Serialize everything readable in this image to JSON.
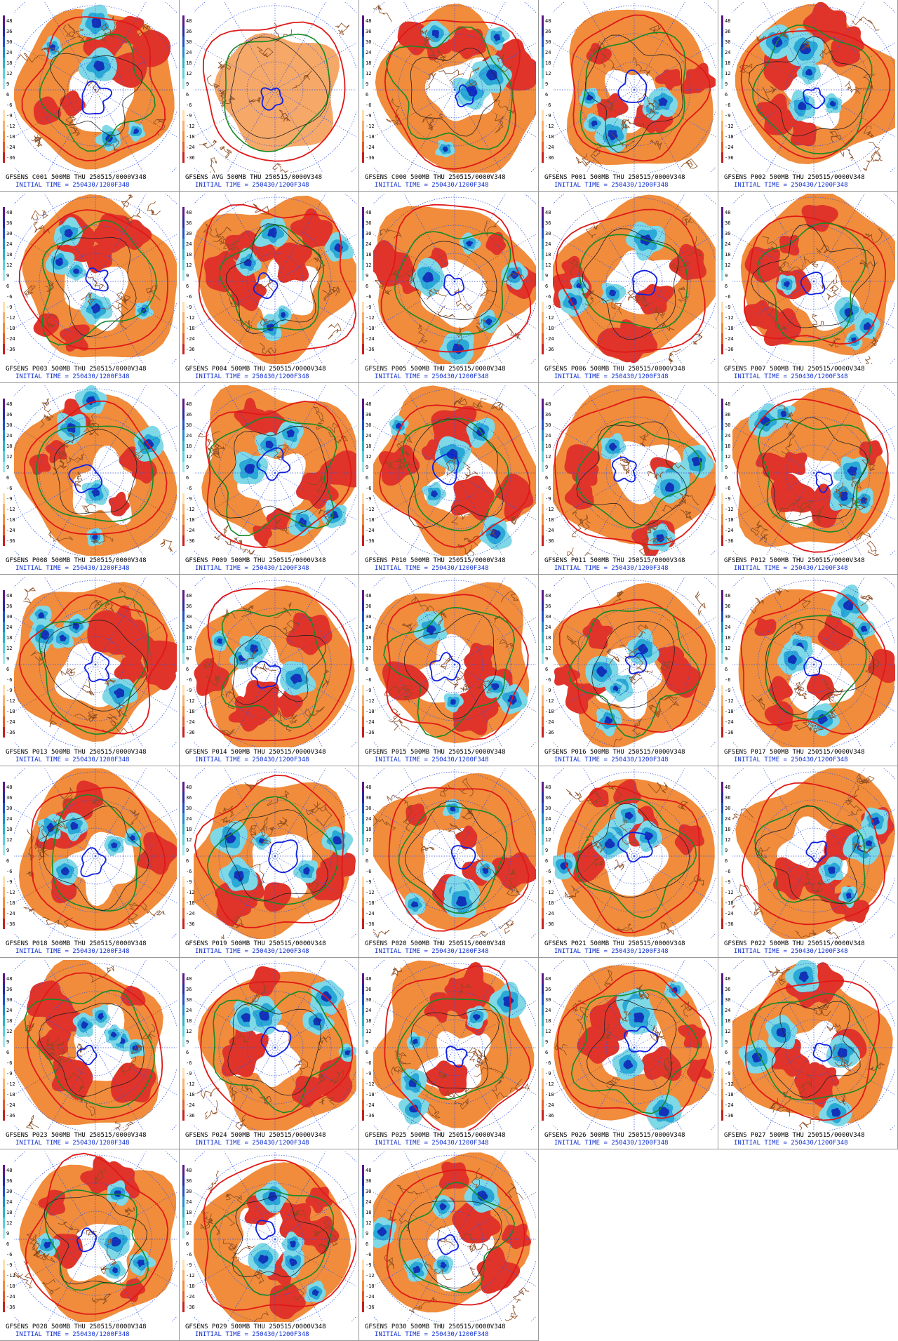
{
  "panels": [
    {
      "title": "GFSENS C001 500MB THU 250515/0000V348"
    },
    {
      "title": "GFSENS AVG 500MB THU 250515/0000V348"
    },
    {
      "title": "GFSENS C000 500MB THU 250515/0000V348"
    },
    {
      "title": "GFSENS P001 500MB THU 250515/0000V348"
    },
    {
      "title": "GFSENS P002 500MB THU 250515/0000V348"
    },
    {
      "title": "GFSENS P003 500MB THU 250515/0000V348"
    },
    {
      "title": "GFSENS P004 500MB THU 250515/0000V348"
    },
    {
      "title": "GFSENS P005 500MB THU 250515/0000V348"
    },
    {
      "title": "GFSENS P006 500MB THU 250515/0000V348"
    },
    {
      "title": "GFSENS P007 500MB THU 250515/0000V348"
    },
    {
      "title": "GFSENS P008 500MB THU 250515/0000V348"
    },
    {
      "title": "GFSENS P009 500MB THU 250515/0000V348"
    },
    {
      "title": "GFSENS P010 500MB THU 250515/0000V348"
    },
    {
      "title": "GFSENS P011 500MB THU 250515/0000V348"
    },
    {
      "title": "GFSENS P012 500MB THU 250515/0000V348"
    },
    {
      "title": "GFSENS P013 500MB THU 250515/0000V348"
    },
    {
      "title": "GFSENS P014 500MB THU 250515/0000V348"
    },
    {
      "title": "GFSENS P015 500MB THU 250515/0000V348"
    },
    {
      "title": "GFSENS P016 500MB THU 250515/0000V348"
    },
    {
      "title": "GFSENS P017 500MB THU 250515/0000V348"
    },
    {
      "title": "GFSENS P018 500MB THU 250515/0000V348"
    },
    {
      "title": "GFSENS P019 500MB THU 250515/0000V348"
    },
    {
      "title": "GFSENS P020 500MB THU 250515/0000V348"
    },
    {
      "title": "GFSENS P021 500MB THU 250515/0000V348"
    },
    {
      "title": "GFSENS P022 500MB THU 250515/0000V348"
    },
    {
      "title": "GFSENS P023 500MB THU 250515/0000V348"
    },
    {
      "title": "GFSENS P024 500MB THU 250515/0000V348"
    },
    {
      "title": "GFSENS P025 500MB THU 250515/0000V348"
    },
    {
      "title": "GFSENS P026 500MB THU 250515/0000V348"
    },
    {
      "title": "GFSENS P027 500MB THU 250515/0000V348"
    },
    {
      "title": "GFSENS P028 500MB THU 250515/0000V348"
    },
    {
      "title": "GFSENS P029 500MB THU 250515/0000V348"
    },
    {
      "title": "GFSENS P030 500MB THU 250515/0000V348"
    }
  ],
  "initial_time": "INITIAL TIME = 250430/1200F348",
  "colorbar_labels": [
    "48",
    "36",
    "30",
    "24",
    "18",
    "12",
    "9",
    "6",
    "-6",
    "-9",
    "-12",
    "-18",
    "-24",
    "-36"
  ]
}
